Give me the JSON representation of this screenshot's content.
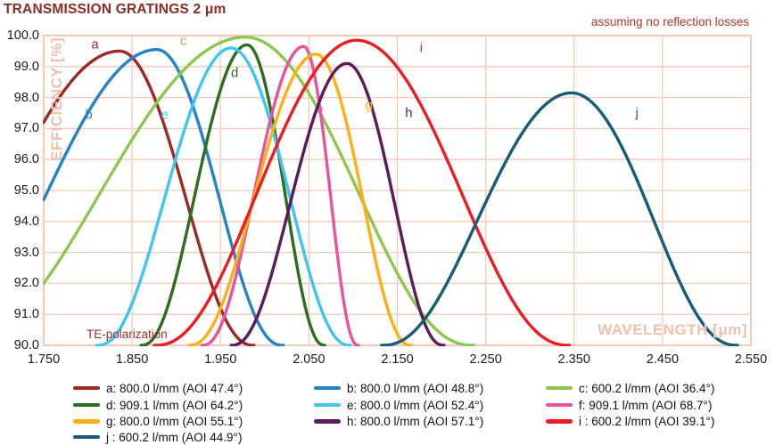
{
  "header": {
    "title": "TRANSMISSION GRATINGS 2 μm",
    "note": "assuming no reflection losses"
  },
  "chart_data": {
    "type": "line",
    "title": "TRANSMISSION GRATINGS 2 μm",
    "annotation": "assuming no reflection losses",
    "xlabel": "WAVELENGTH [μm]",
    "ylabel": "EFFICIENCY [%]",
    "polarization_note": "TE-polarization",
    "xlim": [
      1.75,
      2.55
    ],
    "ylim": [
      90.0,
      100.0
    ],
    "x_ticks": [
      "1.750",
      "1.850",
      "1.950",
      "2.050",
      "2.150",
      "2.250",
      "2.350",
      "2.450",
      "2.550"
    ],
    "y_ticks": [
      "100.0",
      "99.0",
      "98.0",
      "97.0",
      "96.0",
      "95.0",
      "94.0",
      "93.0",
      "92.0",
      "91.0",
      "90.0"
    ],
    "grid": true,
    "grid_color": "#f6cab8",
    "axis_title_color": "#f0bfae",
    "legend_position": "bottom",
    "series": [
      {
        "key": "a",
        "legend": "a: 800.0 l/mm (AOI 47.4°)",
        "lines_per_mm": 800.0,
        "aoi_deg": 47.4,
        "color": "#9a2a25",
        "peak": {
          "wavelength": 1.836,
          "efficiency": 99.5
        },
        "left": {
          "type": "edge",
          "wavelength": 1.75,
          "efficiency": 97.2
        },
        "right": {
          "type": "crossing",
          "wavelength": 1.988
        },
        "label_pos": {
          "wavelength": 1.808,
          "efficiency": 99.72
        }
      },
      {
        "key": "b",
        "legend": "b: 800.0 l/mm (AOI 48.8°)",
        "lines_per_mm": 800.0,
        "aoi_deg": 48.8,
        "color": "#2283c5",
        "peak": {
          "wavelength": 1.878,
          "efficiency": 99.55
        },
        "left": {
          "type": "edge",
          "wavelength": 1.75,
          "efficiency": 94.7
        },
        "right": {
          "type": "crossing",
          "wavelength": 2.021
        },
        "label_pos": {
          "wavelength": 1.801,
          "efficiency": 97.45
        }
      },
      {
        "key": "c",
        "legend": "c: 600.2 l/mm (AOI 36.4°)",
        "lines_per_mm": 600.2,
        "aoi_deg": 36.4,
        "color": "#8fc74e",
        "peak": {
          "wavelength": 1.978,
          "efficiency": 99.95
        },
        "left": {
          "type": "edge",
          "wavelength": 1.75,
          "efficiency": 92.0
        },
        "right": {
          "type": "crossing",
          "wavelength": 2.237
        },
        "label_pos": {
          "wavelength": 1.908,
          "efficiency": 99.83
        }
      },
      {
        "key": "d",
        "legend": "d: 909.1 l/mm (AOI 64.2°)",
        "lines_per_mm": 909.1,
        "aoi_deg": 64.2,
        "color": "#2d6e1e",
        "peak": {
          "wavelength": 1.98,
          "efficiency": 99.7
        },
        "left": {
          "type": "crossing",
          "wavelength": 1.86
        },
        "right": {
          "type": "crossing",
          "wavelength": 2.068
        },
        "label_pos": {
          "wavelength": 1.966,
          "efficiency": 98.78
        }
      },
      {
        "key": "e",
        "legend": "e: 800.0 l/mm (AOI 52.4°)",
        "lines_per_mm": 800.0,
        "aoi_deg": 52.4,
        "color": "#41c4f2",
        "peak": {
          "wavelength": 1.962,
          "efficiency": 99.6
        },
        "left": {
          "type": "crossing",
          "wavelength": 1.81
        },
        "right": {
          "type": "crossing",
          "wavelength": 2.097
        },
        "label_pos": {
          "wavelength": 1.887,
          "efficiency": 97.45
        }
      },
      {
        "key": "f",
        "legend": "f: 909.1 l/mm (AOI 68.7°)",
        "lines_per_mm": 909.1,
        "aoi_deg": 68.7,
        "color": "#e9539e",
        "peak": {
          "wavelength": 2.044,
          "efficiency": 99.65
        },
        "left": {
          "type": "crossing",
          "wavelength": 1.929
        },
        "right": {
          "type": "crossing",
          "wavelength": 2.106
        },
        "label_pos": {
          "wavelength": 2.064,
          "efficiency": 97.5
        }
      },
      {
        "key": "g",
        "legend": "g: 800.0 l/mm (AOI 55.1°)",
        "lines_per_mm": 800.0,
        "aoi_deg": 55.1,
        "color": "#fcaf17",
        "peak": {
          "wavelength": 2.058,
          "efficiency": 99.4
        },
        "left": {
          "type": "crossing",
          "wavelength": 1.914
        },
        "right": {
          "type": "crossing",
          "wavelength": 2.166
        },
        "label_pos": {
          "wavelength": 2.118,
          "efficiency": 97.75
        }
      },
      {
        "key": "h",
        "legend": "h: 800.0 l/mm (AOI 57.1°)",
        "lines_per_mm": 800.0,
        "aoi_deg": 57.1,
        "color": "#5b1a5e",
        "peak": {
          "wavelength": 2.093,
          "efficiency": 99.1
        },
        "left": {
          "type": "crossing",
          "wavelength": 1.962
        },
        "right": {
          "type": "crossing",
          "wavelength": 2.203
        },
        "label_pos": {
          "wavelength": 2.163,
          "efficiency": 97.5
        }
      },
      {
        "key": "i",
        "legend": "i : 600.2 l/mm (AOI 39.1°)",
        "lines_per_mm": 600.2,
        "aoi_deg": 39.1,
        "color": "#ec1c23",
        "peak": {
          "wavelength": 2.104,
          "efficiency": 99.85
        },
        "left": {
          "type": "crossing",
          "wavelength": 1.875
        },
        "right": {
          "type": "crossing",
          "wavelength": 2.345
        },
        "label_pos": {
          "wavelength": 2.177,
          "efficiency": 99.6
        }
      },
      {
        "key": "j",
        "legend": "j : 600.2 l/mm (AOI 44.9°)",
        "lines_per_mm": 600.2,
        "aoi_deg": 44.9,
        "color": "#155d75",
        "peak": {
          "wavelength": 2.347,
          "efficiency": 98.15
        },
        "left": {
          "type": "crossing",
          "wavelength": 2.132
        },
        "right": {
          "type": "crossing",
          "wavelength": 2.535
        },
        "label_pos": {
          "wavelength": 2.421,
          "efficiency": 97.5
        }
      }
    ]
  }
}
